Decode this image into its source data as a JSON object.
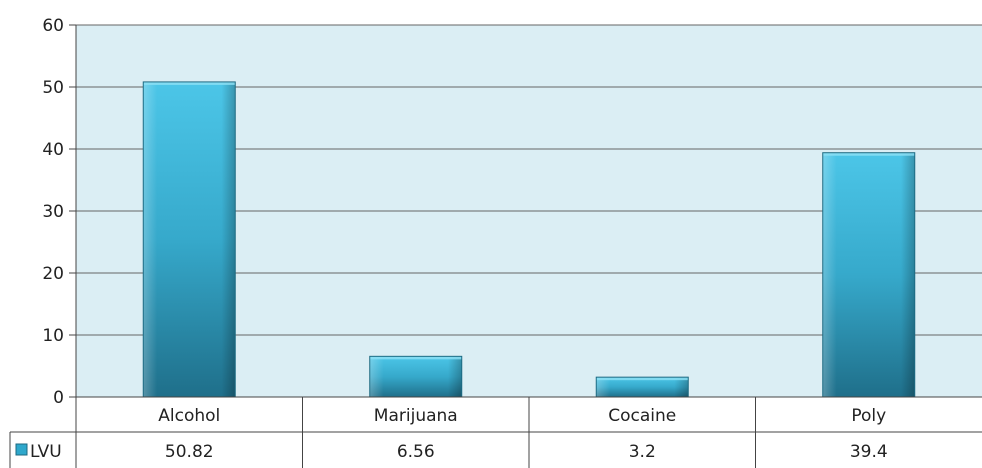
{
  "chart_data": {
    "type": "bar",
    "categories": [
      "Alcohol",
      "Marijuana",
      "Cocaine",
      "Poly"
    ],
    "series": [
      {
        "name": "LVU",
        "values": [
          50.82,
          6.56,
          3.2,
          39.4
        ]
      }
    ],
    "value_labels": [
      "50.82",
      "6.56",
      "3.2",
      "39.4"
    ],
    "ylim": [
      0,
      60
    ],
    "yticks": [
      0,
      10,
      20,
      30,
      40,
      50,
      60
    ],
    "ytick_labels": [
      "0",
      "10",
      "20",
      "30",
      "40",
      "50",
      "60"
    ],
    "grid": true,
    "legend": "data-table",
    "colors": {
      "bar_top": "#4cc6e8",
      "bar_bottom": "#1f6f8a",
      "plot_bg": "#dbeef4",
      "gridline": "#666666",
      "legend_key": "#2fa8cc"
    }
  }
}
